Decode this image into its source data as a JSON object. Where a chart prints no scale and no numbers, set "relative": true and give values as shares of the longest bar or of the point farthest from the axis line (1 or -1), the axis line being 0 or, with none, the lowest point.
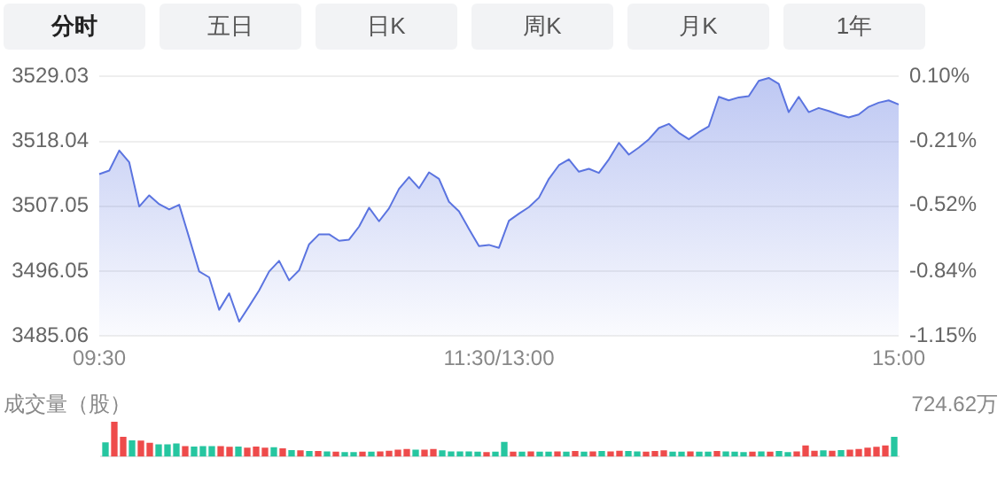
{
  "chart_data": [
    {
      "type": "other",
      "annotations": [
        "分时",
        "五日",
        "日K",
        "周K",
        "月K",
        "1年"
      ]
    },
    {
      "type": "area",
      "categories": [
        "09:30",
        null,
        null,
        null,
        null,
        null,
        null,
        null,
        null,
        null,
        null,
        null,
        null,
        null,
        null,
        null,
        null,
        null,
        null,
        null,
        null,
        null,
        null,
        null,
        null,
        null,
        null,
        null,
        null,
        null,
        null,
        null,
        null,
        null,
        null,
        null,
        null,
        null,
        null,
        null,
        "11:30/13:00",
        null,
        null,
        null,
        null,
        null,
        null,
        null,
        null,
        null,
        null,
        null,
        null,
        null,
        null,
        null,
        null,
        null,
        null,
        null,
        null,
        null,
        null,
        null,
        null,
        null,
        null,
        null,
        null,
        null,
        null,
        null,
        null,
        null,
        null,
        null,
        null,
        null,
        null,
        null,
        "15:00"
      ],
      "series": [
        {
          "color": "#5b74e0",
          "values": [
            3512.5,
            3513.1,
            3516.5,
            3514.5,
            3507.0,
            3508.9,
            3507.4,
            3506.5,
            3507.3,
            3501.7,
            3496.0,
            3495.0,
            3489.5,
            3492.3,
            3487.5,
            3490.1,
            3492.8,
            3496.0,
            3497.8,
            3494.5,
            3496.2,
            3500.6,
            3502.3,
            3502.3,
            3501.2,
            3501.4,
            3503.6,
            3506.8,
            3504.5,
            3506.7,
            3510.0,
            3512.0,
            3510.1,
            3512.8,
            3511.7,
            3507.8,
            3506.2,
            3503.2,
            3500.3,
            3500.5,
            3500.0,
            3504.6,
            3505.8,
            3506.9,
            3508.5,
            3511.7,
            3514.0,
            3515.0,
            3512.9,
            3513.4,
            3512.7,
            3515.0,
            3517.8,
            3515.8,
            3517.0,
            3518.4,
            3520.3,
            3521.0,
            3519.5,
            3518.4,
            3519.6,
            3520.6,
            3525.6,
            3525.0,
            3525.5,
            3525.7,
            3528.3,
            3528.8,
            3527.8,
            3523.0,
            3525.6,
            3523.0,
            3523.7,
            3523.2,
            3522.6,
            3522.1,
            3522.6,
            3523.9,
            3524.6,
            3525.0,
            3524.3
          ]
        }
      ],
      "ylim": [
        3485.06,
        3529.03
      ],
      "yticks": [
        3485.06,
        3496.05,
        3507.05,
        3518.04,
        3529.03
      ],
      "y2lim": [
        -1.15,
        0.1
      ],
      "y2ticks": [
        {
          "value": -1.15,
          "label": "-1.15%"
        },
        {
          "value": -0.84,
          "label": "-0.84%"
        },
        {
          "value": -0.52,
          "label": "-0.52%"
        },
        {
          "value": -0.21,
          "label": "-0.21%"
        },
        {
          "value": 0.1,
          "label": "0.10%"
        }
      ],
      "grid": "y",
      "legend": false
    },
    {
      "type": "bar",
      "relative": true,
      "title": "成交量（股）",
      "annotations": [
        "724.62万"
      ],
      "categories": [
        null,
        null,
        null,
        null,
        null,
        null,
        null,
        null,
        null,
        null,
        null,
        null,
        null,
        null,
        null,
        null,
        null,
        null,
        null,
        null,
        null,
        null,
        null,
        null,
        null,
        null,
        null,
        null,
        null,
        null,
        null,
        null,
        null,
        null,
        null,
        null,
        null,
        null,
        null,
        null,
        null,
        null,
        null,
        null,
        null,
        null,
        null,
        null,
        null,
        null,
        null,
        null,
        null,
        null,
        null,
        null,
        null,
        null,
        null,
        null,
        null,
        null,
        null,
        null,
        null,
        null,
        null,
        null,
        null,
        null,
        null,
        null,
        null,
        null,
        null,
        null,
        null,
        null,
        null,
        null,
        null,
        null,
        null,
        null,
        null,
        null,
        null,
        null,
        null,
        null
      ],
      "values": [
        0.39,
        1,
        0.55,
        0.45,
        0.44,
        0.38,
        0.33,
        0.33,
        0.36,
        0.28,
        0.27,
        0.28,
        0.28,
        0.28,
        0.26,
        0.27,
        0.24,
        0.27,
        0.24,
        0.25,
        0.22,
        0.17,
        0.16,
        0.14,
        0.14,
        0.13,
        0.12,
        0.11,
        0.11,
        0.12,
        0.12,
        0.13,
        0.15,
        0.18,
        0.2,
        0.18,
        0.18,
        0.2,
        0.16,
        0.13,
        0.13,
        0.13,
        0.12,
        0.11,
        0.12,
        0.4,
        0.12,
        0.12,
        0.13,
        0.12,
        0.12,
        0.13,
        0.12,
        0.14,
        0.12,
        0.13,
        0.14,
        0.13,
        0.15,
        0.14,
        0.13,
        0.12,
        0.14,
        0.16,
        0.12,
        0.12,
        0.13,
        0.12,
        0.12,
        0.14,
        0.13,
        0.12,
        0.11,
        0.12,
        0.13,
        0.12,
        0.14,
        0.11,
        0.13,
        0.3,
        0.15,
        0.16,
        0.15,
        0.17,
        0.18,
        0.2,
        0.24,
        0.26,
        0.3,
        0.55
      ],
      "colors": [
        "#26c6a0",
        "#ee4b4b",
        "#ee4b4b",
        "#26c6a0",
        "#ee4b4b",
        "#ee4b4b",
        "#26c6a0",
        "#26c6a0",
        "#26c6a0",
        "#ee4b4b",
        "#26c6a0",
        "#26c6a0",
        "#26c6a0",
        "#ee4b4b",
        "#ee4b4b",
        "#26c6a0",
        "#ee4b4b",
        "#ee4b4b",
        "#ee4b4b",
        "#26c6a0",
        "#ee4b4b",
        "#26c6a0",
        "#ee4b4b",
        "#26c6a0",
        "#ee4b4b",
        "#26c6a0",
        "#ee4b4b",
        "#26c6a0",
        "#26c6a0",
        "#ee4b4b",
        "#26c6a0",
        "#ee4b4b",
        "#ee4b4b",
        "#ee4b4b",
        "#ee4b4b",
        "#26c6a0",
        "#ee4b4b",
        "#ee4b4b",
        "#26c6a0",
        "#26c6a0",
        "#26c6a0",
        "#26c6a0",
        "#26c6a0",
        "#ee4b4b",
        "#26c6a0",
        "#26c6a0",
        "#ee4b4b",
        "#26c6a0",
        "#ee4b4b",
        "#26c6a0",
        "#26c6a0",
        "#ee4b4b",
        "#26c6a0",
        "#ee4b4b",
        "#26c6a0",
        "#ee4b4b",
        "#26c6a0",
        "#ee4b4b",
        "#ee4b4b",
        "#26c6a0",
        "#26c6a0",
        "#ee4b4b",
        "#ee4b4b",
        "#ee4b4b",
        "#26c6a0",
        "#26c6a0",
        "#ee4b4b",
        "#26c6a0",
        "#26c6a0",
        "#ee4b4b",
        "#26c6a0",
        "#26c6a0",
        "#26c6a0",
        "#ee4b4b",
        "#26c6a0",
        "#ee4b4b",
        "#26c6a0",
        "#26c6a0",
        "#ee4b4b",
        "#ee4b4b",
        "#ee4b4b",
        "#26c6a0",
        "#ee4b4b",
        "#26c6a0",
        "#ee4b4b",
        "#ee4b4b",
        "#ee4b4b",
        "#ee4b4b",
        "#ee4b4b",
        "#26c6a0"
      ]
    }
  ]
}
